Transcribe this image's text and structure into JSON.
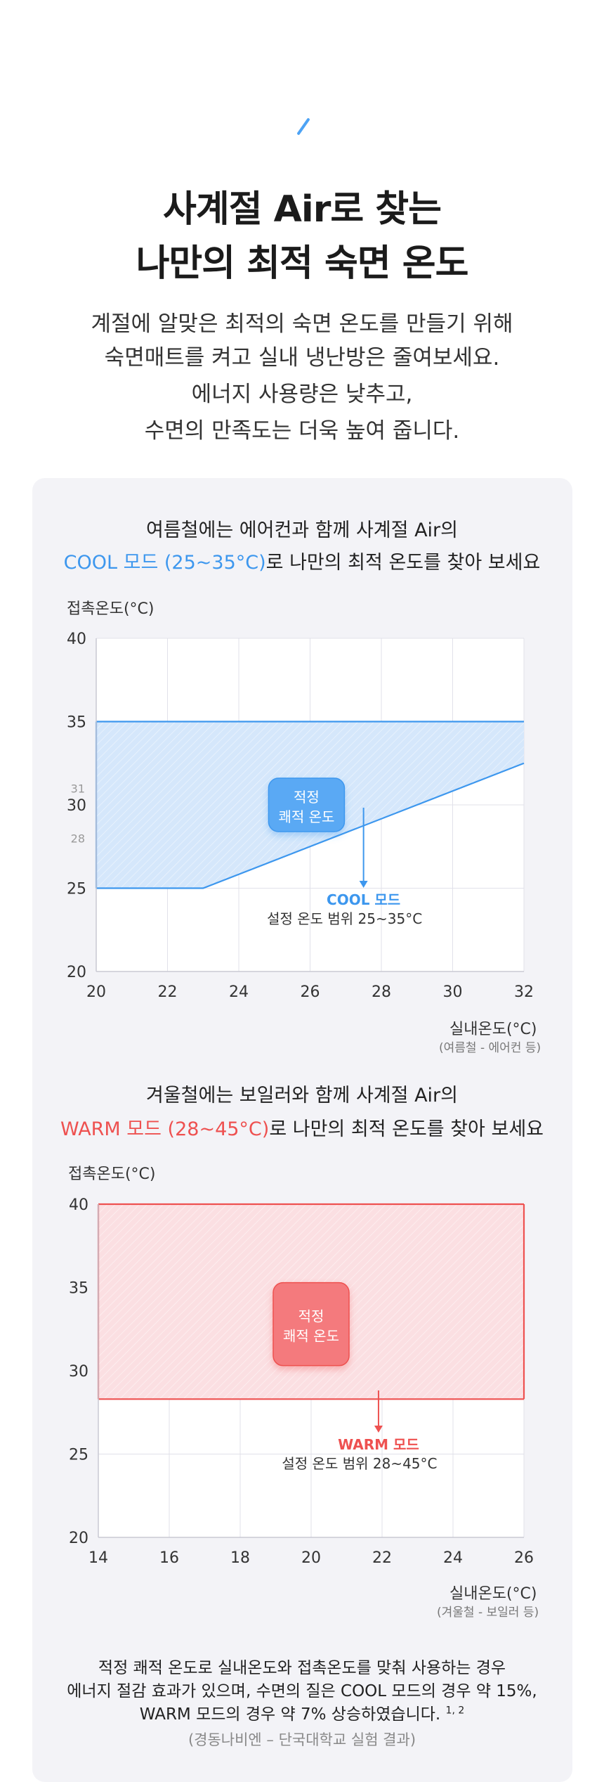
{
  "header": {
    "title_lines": [
      "사계절 Air로 찾는",
      "나만의 최적 숙면 온도"
    ],
    "intro_lines": [
      "계절에 알맞은 최적의 숙면 온도를 만들기 위해",
      "숙면매트를 켜고 실내 냉난방은 줄여보세요.",
      "에너지 사용량은 낮추고,",
      "수면의 만족도는 더욱 높여 줍니다."
    ]
  },
  "cool_section": {
    "heading_line1": "여름철에는 에어컨과 함께 사계절 Air의",
    "heading_highlight": "COOL 모드 (25~35°C)",
    "heading_rest": "로 나만의 최적 온도를 찾아 보세요",
    "y_axis_title": "접촉온도(°C)",
    "x_axis_title": "실내온도(°C)",
    "x_axis_sub": "(여름철 - 에어컨 등)",
    "box_label": [
      "적정",
      "쾌적 온도"
    ],
    "mode_label": "COOL 모드",
    "range_label": "설정 온도 범위 25~35°C"
  },
  "warm_section": {
    "heading_line1": "겨울철에는 보일러와 함께 사계절 Air의",
    "heading_highlight": "WARM 모드 (28~45°C)",
    "heading_rest": "로 나만의 최적 온도를 찾아 보세요",
    "y_axis_title": "접촉온도(°C)",
    "x_axis_title": "실내온도(°C)",
    "x_axis_sub": "(겨울철 - 보일러 등)",
    "box_label": [
      "적정",
      "쾌적 온도"
    ],
    "mode_label": "WARM 모드",
    "range_label": "설정 온도 범위 28~45°C"
  },
  "footer": {
    "lines": [
      "적정 쾌적 온도로 실내온도와 접촉온도를 맞춰 사용하는 경우",
      "에너지 절감 효과가 있으며, 수면의 질은 COOL 모드의 경우 약 15%,",
      "WARM 모드의 경우 약 7% 상승하였습니다."
    ],
    "footnote": "1, 2",
    "source": "(경동나비엔 – 단국대학교 실험 결과)"
  },
  "colors": {
    "cool": "#3d97ee",
    "cool_fill": "#d5e7fb",
    "cool_box": "#5aa9f4",
    "warm": "#ee5150",
    "warm_fill": "#fbdfe2",
    "warm_box": "#f47a7d",
    "grid": "#e1e1ea"
  },
  "chart_data": [
    {
      "type": "area",
      "x_ticks": [
        20,
        22,
        24,
        26,
        28,
        30,
        32
      ],
      "y_ticks": [
        20,
        25,
        30,
        35,
        40
      ],
      "y_minor_ticks": [
        28,
        31
      ],
      "xlim": [
        20,
        32
      ],
      "ylim": [
        20,
        40
      ],
      "upper_bound": [
        [
          20,
          35
        ],
        [
          32,
          35
        ]
      ],
      "lower_bound": [
        [
          20,
          25
        ],
        [
          23,
          25
        ],
        [
          32,
          32.5
        ]
      ],
      "arrow_at_x": 27.5,
      "box_center": [
        25.9,
        30
      ]
    },
    {
      "type": "area",
      "x_ticks": [
        14,
        16,
        18,
        20,
        22,
        24,
        26
      ],
      "y_ticks": [
        20,
        25,
        30,
        35,
        40
      ],
      "xlim": [
        14,
        26
      ],
      "ylim": [
        20,
        40
      ],
      "upper_bound": [
        [
          14,
          40
        ],
        [
          26,
          40
        ]
      ],
      "lower_bound": [
        [
          14,
          28.3
        ],
        [
          26,
          28.3
        ]
      ],
      "arrow_at_x": 21.9,
      "box_center": [
        20,
        32.8
      ]
    }
  ]
}
